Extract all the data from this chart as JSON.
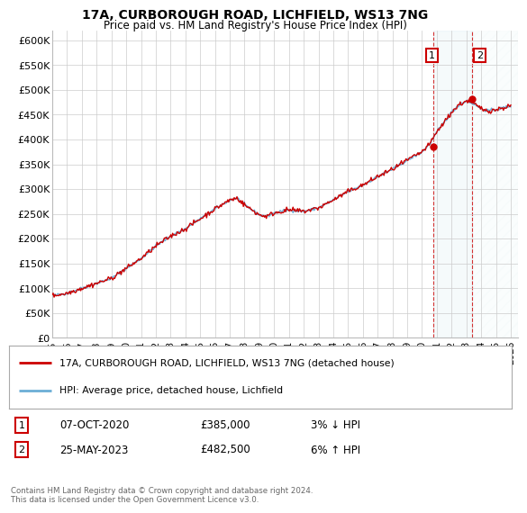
{
  "title": "17A, CURBOROUGH ROAD, LICHFIELD, WS13 7NG",
  "subtitle": "Price paid vs. HM Land Registry's House Price Index (HPI)",
  "legend_line1": "17A, CURBOROUGH ROAD, LICHFIELD, WS13 7NG (detached house)",
  "legend_line2": "HPI: Average price, detached house, Lichfield",
  "annotation1_num": "1",
  "annotation1_date": "07-OCT-2020",
  "annotation1_price": "£385,000",
  "annotation1_hpi": "3% ↓ HPI",
  "annotation2_num": "2",
  "annotation2_date": "25-MAY-2023",
  "annotation2_price": "£482,500",
  "annotation2_hpi": "6% ↑ HPI",
  "footer": "Contains HM Land Registry data © Crown copyright and database right 2024.\nThis data is licensed under the Open Government Licence v3.0.",
  "sale1_year": 2020.77,
  "sale1_price": 385000,
  "sale2_year": 2023.39,
  "sale2_price": 482500,
  "hpi_color": "#6baed6",
  "price_color": "#cc0000",
  "annotation_box_color": "#cc0000",
  "background_color": "#ffffff",
  "grid_color": "#cccccc",
  "ylim": [
    0,
    620000
  ],
  "xlim_start": 1995,
  "xlim_end": 2026.5,
  "yticks": [
    0,
    50000,
    100000,
    150000,
    200000,
    250000,
    300000,
    350000,
    400000,
    450000,
    500000,
    550000,
    600000
  ],
  "ytick_labels": [
    "£0",
    "£50K",
    "£100K",
    "£150K",
    "£200K",
    "£250K",
    "£300K",
    "£350K",
    "£400K",
    "£450K",
    "£500K",
    "£550K",
    "£600K"
  ],
  "xticks": [
    1995,
    1996,
    1997,
    1998,
    1999,
    2000,
    2001,
    2002,
    2003,
    2004,
    2005,
    2006,
    2007,
    2008,
    2009,
    2010,
    2011,
    2012,
    2013,
    2014,
    2015,
    2016,
    2017,
    2018,
    2019,
    2020,
    2021,
    2022,
    2023,
    2024,
    2025,
    2026
  ]
}
